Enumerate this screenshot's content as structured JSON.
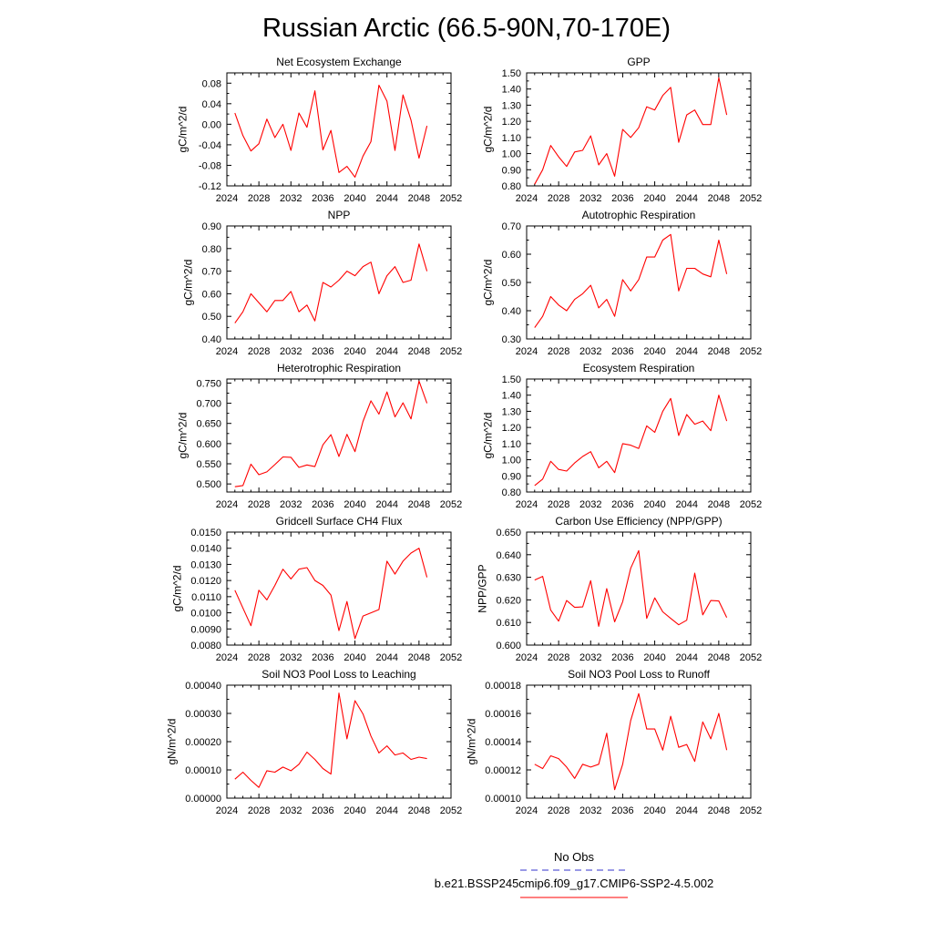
{
  "figure": {
    "title": "Russian Arctic (66.5-90N,70-170E)"
  },
  "legend": {
    "entries": [
      {
        "label": "No Obs",
        "color": "#3333cc",
        "style": "dashed"
      },
      {
        "label": "b.e21.BSSP245cmip6.f09_g17.CMIP6-SSP2-4.5.002",
        "color": "#ff0000",
        "style": "solid"
      }
    ]
  },
  "chart_data": [
    {
      "type": "line",
      "title": "Net Ecosystem Exchange",
      "ylabel": "gC/m^2/d",
      "xlabel": "",
      "xlim": [
        2024,
        2052
      ],
      "ylim": [
        -0.12,
        0.1
      ],
      "xticks": [
        2024,
        2028,
        2032,
        2036,
        2040,
        2044,
        2048,
        2052
      ],
      "yticks": [
        "-0.12",
        "-0.08",
        "-0.04",
        "0.00",
        "0.04",
        "0.08"
      ],
      "color": "#ff0000",
      "x": [
        2025,
        2026,
        2027,
        2028,
        2029,
        2030,
        2031,
        2032,
        2033,
        2034,
        2035,
        2036,
        2037,
        2038,
        2039,
        2040,
        2041,
        2042,
        2043,
        2044,
        2045,
        2046,
        2047,
        2048,
        2049
      ],
      "values": [
        0.022,
        -0.022,
        -0.052,
        -0.038,
        0.01,
        -0.026,
        0.0,
        -0.051,
        0.022,
        -0.006,
        0.065,
        -0.05,
        -0.012,
        -0.094,
        -0.082,
        -0.103,
        -0.062,
        -0.034,
        0.076,
        0.045,
        -0.051,
        0.057,
        0.008,
        -0.066,
        -0.003
      ]
    },
    {
      "type": "line",
      "title": "GPP",
      "ylabel": "gC/m^2/d",
      "xlabel": "",
      "xlim": [
        2024,
        2052
      ],
      "ylim": [
        0.8,
        1.5
      ],
      "xticks": [
        2024,
        2028,
        2032,
        2036,
        2040,
        2044,
        2048,
        2052
      ],
      "yticks": [
        "0.80",
        "0.90",
        "1.00",
        "1.10",
        "1.20",
        "1.30",
        "1.40",
        "1.50"
      ],
      "color": "#ff0000",
      "x": [
        2025,
        2026,
        2027,
        2028,
        2029,
        2030,
        2031,
        2032,
        2033,
        2034,
        2035,
        2036,
        2037,
        2038,
        2039,
        2040,
        2041,
        2042,
        2043,
        2044,
        2045,
        2046,
        2047,
        2048,
        2049
      ],
      "values": [
        0.81,
        0.9,
        1.05,
        0.98,
        0.92,
        1.01,
        1.02,
        1.11,
        0.93,
        1.0,
        0.86,
        1.15,
        1.1,
        1.16,
        1.29,
        1.27,
        1.36,
        1.41,
        1.07,
        1.24,
        1.27,
        1.18,
        1.18,
        1.47,
        1.24
      ]
    },
    {
      "type": "line",
      "title": "NPP",
      "ylabel": "gC/m^2/d",
      "xlabel": "",
      "xlim": [
        2024,
        2052
      ],
      "ylim": [
        0.4,
        0.9
      ],
      "xticks": [
        2024,
        2028,
        2032,
        2036,
        2040,
        2044,
        2048,
        2052
      ],
      "yticks": [
        "0.40",
        "0.50",
        "0.60",
        "0.70",
        "0.80",
        "0.90"
      ],
      "color": "#ff0000",
      "x": [
        2025,
        2026,
        2027,
        2028,
        2029,
        2030,
        2031,
        2032,
        2033,
        2034,
        2035,
        2036,
        2037,
        2038,
        2039,
        2040,
        2041,
        2042,
        2043,
        2044,
        2045,
        2046,
        2047,
        2048,
        2049
      ],
      "values": [
        0.47,
        0.52,
        0.6,
        0.56,
        0.52,
        0.57,
        0.57,
        0.61,
        0.52,
        0.55,
        0.48,
        0.65,
        0.63,
        0.66,
        0.7,
        0.68,
        0.72,
        0.74,
        0.6,
        0.68,
        0.72,
        0.65,
        0.66,
        0.82,
        0.7
      ]
    },
    {
      "type": "line",
      "title": "Autotrophic Respiration",
      "ylabel": "gC/m^2/d",
      "xlabel": "",
      "xlim": [
        2024,
        2052
      ],
      "ylim": [
        0.3,
        0.7
      ],
      "xticks": [
        2024,
        2028,
        2032,
        2036,
        2040,
        2044,
        2048,
        2052
      ],
      "yticks": [
        "0.30",
        "0.40",
        "0.50",
        "0.60",
        "0.70"
      ],
      "color": "#ff0000",
      "x": [
        2025,
        2026,
        2027,
        2028,
        2029,
        2030,
        2031,
        2032,
        2033,
        2034,
        2035,
        2036,
        2037,
        2038,
        2039,
        2040,
        2041,
        2042,
        2043,
        2044,
        2045,
        2046,
        2047,
        2048,
        2049
      ],
      "values": [
        0.34,
        0.38,
        0.45,
        0.42,
        0.4,
        0.44,
        0.46,
        0.49,
        0.41,
        0.44,
        0.38,
        0.51,
        0.47,
        0.51,
        0.59,
        0.59,
        0.65,
        0.67,
        0.47,
        0.55,
        0.55,
        0.53,
        0.52,
        0.65,
        0.53
      ]
    },
    {
      "type": "line",
      "title": "Heterotrophic Respiration",
      "ylabel": "gC/m^2/d",
      "xlabel": "",
      "xlim": [
        2024,
        2052
      ],
      "ylim": [
        0.48,
        0.76
      ],
      "xticks": [
        2024,
        2028,
        2032,
        2036,
        2040,
        2044,
        2048,
        2052
      ],
      "yticks": [
        "0.500",
        "0.550",
        "0.600",
        "0.650",
        "0.700",
        "0.750"
      ],
      "color": "#ff0000",
      "x": [
        2025,
        2026,
        2027,
        2028,
        2029,
        2030,
        2031,
        2032,
        2033,
        2034,
        2035,
        2036,
        2037,
        2038,
        2039,
        2040,
        2041,
        2042,
        2043,
        2044,
        2045,
        2046,
        2047,
        2048,
        2049
      ],
      "values": [
        0.493,
        0.496,
        0.549,
        0.523,
        0.53,
        0.548,
        0.567,
        0.566,
        0.541,
        0.547,
        0.543,
        0.597,
        0.622,
        0.568,
        0.623,
        0.58,
        0.655,
        0.706,
        0.673,
        0.728,
        0.666,
        0.701,
        0.661,
        0.755,
        0.7
      ]
    },
    {
      "type": "line",
      "title": "Ecosystem Respiration",
      "ylabel": "gC/m^2/d",
      "xlabel": "",
      "xlim": [
        2024,
        2052
      ],
      "ylim": [
        0.8,
        1.5
      ],
      "xticks": [
        2024,
        2028,
        2032,
        2036,
        2040,
        2044,
        2048,
        2052
      ],
      "yticks": [
        "0.80",
        "0.90",
        "1.00",
        "1.10",
        "1.20",
        "1.30",
        "1.40",
        "1.50"
      ],
      "color": "#ff0000",
      "x": [
        2025,
        2026,
        2027,
        2028,
        2029,
        2030,
        2031,
        2032,
        2033,
        2034,
        2035,
        2036,
        2037,
        2038,
        2039,
        2040,
        2041,
        2042,
        2043,
        2044,
        2045,
        2046,
        2047,
        2048,
        2049
      ],
      "values": [
        0.84,
        0.88,
        0.99,
        0.94,
        0.93,
        0.98,
        1.02,
        1.05,
        0.95,
        0.99,
        0.92,
        1.1,
        1.09,
        1.07,
        1.21,
        1.17,
        1.3,
        1.38,
        1.15,
        1.28,
        1.22,
        1.24,
        1.18,
        1.4,
        1.24
      ]
    },
    {
      "type": "line",
      "title": "Gridcell Surface CH4 Flux",
      "ylabel": "gC/m^2/d",
      "xlabel": "",
      "xlim": [
        2024,
        2052
      ],
      "ylim": [
        0.008,
        0.015
      ],
      "xticks": [
        2024,
        2028,
        2032,
        2036,
        2040,
        2044,
        2048,
        2052
      ],
      "yticks": [
        "0.0080",
        "0.0090",
        "0.0100",
        "0.0110",
        "0.0120",
        "0.0130",
        "0.0140",
        "0.0150"
      ],
      "color": "#ff0000",
      "x": [
        2025,
        2026,
        2027,
        2028,
        2029,
        2030,
        2031,
        2032,
        2033,
        2034,
        2035,
        2036,
        2037,
        2038,
        2039,
        2040,
        2041,
        2042,
        2043,
        2044,
        2045,
        2046,
        2047,
        2048,
        2049
      ],
      "values": [
        0.0114,
        0.0103,
        0.0092,
        0.0114,
        0.0108,
        0.0117,
        0.0127,
        0.0121,
        0.0127,
        0.0128,
        0.012,
        0.0117,
        0.0111,
        0.0089,
        0.0107,
        0.0084,
        0.0098,
        0.01,
        0.0102,
        0.0132,
        0.0124,
        0.0132,
        0.0137,
        0.014,
        0.0122
      ]
    },
    {
      "type": "line",
      "title": "Carbon Use Efficiency (NPP/GPP)",
      "ylabel": "NPP/GPP",
      "xlabel": "",
      "xlim": [
        2024,
        2052
      ],
      "ylim": [
        0.6,
        0.65
      ],
      "xticks": [
        2024,
        2028,
        2032,
        2036,
        2040,
        2044,
        2048,
        2052
      ],
      "yticks": [
        "0.600",
        "0.610",
        "0.620",
        "0.630",
        "0.640",
        "0.650"
      ],
      "color": "#ff0000",
      "x": [
        2025,
        2026,
        2027,
        2028,
        2029,
        2030,
        2031,
        2032,
        2033,
        2034,
        2035,
        2036,
        2037,
        2038,
        2039,
        2040,
        2041,
        2042,
        2043,
        2044,
        2045,
        2046,
        2047,
        2048,
        2049
      ],
      "values": [
        0.6288,
        0.6304,
        0.6155,
        0.6106,
        0.6197,
        0.6167,
        0.6169,
        0.6285,
        0.6083,
        0.625,
        0.6103,
        0.6192,
        0.634,
        0.6418,
        0.6118,
        0.6209,
        0.6147,
        0.6118,
        0.609,
        0.611,
        0.6318,
        0.6134,
        0.6197,
        0.6195,
        0.6122
      ]
    },
    {
      "type": "line",
      "title": "Soil NO3 Pool Loss to Leaching",
      "ylabel": "gN/m^2/d",
      "xlabel": "",
      "xlim": [
        2024,
        2052
      ],
      "ylim": [
        0,
        0.0004
      ],
      "xticks": [
        2024,
        2028,
        2032,
        2036,
        2040,
        2044,
        2048,
        2052
      ],
      "yticks": [
        "0.00000",
        "0.00010",
        "0.00020",
        "0.00030",
        "0.00040"
      ],
      "color": "#ff0000",
      "x": [
        2025,
        2026,
        2027,
        2028,
        2029,
        2030,
        2031,
        2032,
        2033,
        2034,
        2035,
        2036,
        2037,
        2038,
        2039,
        2040,
        2041,
        2042,
        2043,
        2044,
        2045,
        2046,
        2047,
        2048,
        2049
      ],
      "values": [
        6.7e-05,
        9.2e-05,
        6.3e-05,
        3.8e-05,
        9.7e-05,
        9.2e-05,
        0.00011,
        9.7e-05,
        0.00012,
        0.000163,
        0.000137,
        0.000105,
        8.5e-05,
        0.000372,
        0.00021,
        0.000345,
        0.000298,
        0.00022,
        0.00016,
        0.000185,
        0.000153,
        0.00016,
        0.000137,
        0.000145,
        0.00014
      ]
    },
    {
      "type": "line",
      "title": "Soil NO3 Pool Loss to Runoff",
      "ylabel": "gN/m^2/d",
      "xlabel": "",
      "xlim": [
        2024,
        2052
      ],
      "ylim": [
        0.0001,
        0.00018
      ],
      "xticks": [
        2024,
        2028,
        2032,
        2036,
        2040,
        2044,
        2048,
        2052
      ],
      "yticks": [
        "0.00010",
        "0.00012",
        "0.00014",
        "0.00016",
        "0.00018"
      ],
      "color": "#ff0000",
      "x": [
        2025,
        2026,
        2027,
        2028,
        2029,
        2030,
        2031,
        2032,
        2033,
        2034,
        2035,
        2036,
        2037,
        2038,
        2039,
        2040,
        2041,
        2042,
        2043,
        2044,
        2045,
        2046,
        2047,
        2048,
        2049
      ],
      "values": [
        0.000124,
        0.000121,
        0.00013,
        0.000128,
        0.000122,
        0.000114,
        0.000124,
        0.000122,
        0.000124,
        0.000146,
        0.000106,
        0.000124,
        0.000155,
        0.000174,
        0.000149,
        0.000149,
        0.000134,
        0.000158,
        0.000136,
        0.000138,
        0.000126,
        0.000154,
        0.000142,
        0.00016,
        0.000134
      ]
    }
  ]
}
